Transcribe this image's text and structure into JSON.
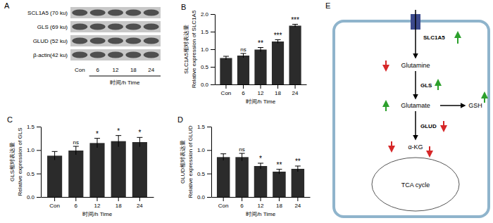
{
  "chart_data": [
    {
      "type": "bar",
      "title": "B",
      "y_label": [
        "SLC1A5相对表达量",
        "Relative expression of SLC1A5"
      ],
      "x_label": "时间/h Time",
      "categories": [
        "Con",
        "6",
        "12",
        "18",
        "24"
      ],
      "values": [
        0.75,
        0.82,
        0.99,
        1.22,
        1.67
      ],
      "errors": [
        0.05,
        0.06,
        0.06,
        0.05,
        0.04
      ],
      "annotations": [
        null,
        "ns",
        "**",
        "***",
        "***"
      ],
      "color": "#2b2b2b",
      "ylim": [
        0,
        2
      ],
      "yticks": [
        {
          "value": 0,
          "label": "0.0"
        },
        0.5,
        {
          "value": 1,
          "label": "1.0"
        },
        1.5,
        {
          "value": 2,
          "label": "2.0"
        }
      ]
    },
    {
      "type": "bar",
      "title": "C",
      "y_label": [
        "GLS相对表达量",
        "Relative expression of GLS"
      ],
      "x_label": "时间/h Time",
      "categories": [
        "Con",
        "6",
        "12",
        "18",
        "24"
      ],
      "values": [
        0.88,
        0.99,
        1.15,
        1.19,
        1.17
      ],
      "errors": [
        0.09,
        0.09,
        0.1,
        0.12,
        0.1
      ],
      "annotations": [
        null,
        "ns",
        "*",
        "*",
        "*"
      ],
      "color": "#2b2b2b",
      "ylim": [
        0,
        1.5
      ],
      "yticks": [
        {
          "value": 0,
          "label": "0.0"
        },
        0.5,
        {
          "value": 1,
          "label": "1.0"
        },
        1.5
      ]
    },
    {
      "type": "bar",
      "title": "D",
      "y_label": [
        "GLUD相对表达量",
        "Relative expression of GLUD"
      ],
      "x_label": "时间/h Time",
      "categories": [
        "Con",
        "6",
        "12",
        "18",
        "24"
      ],
      "values": [
        0.85,
        0.85,
        0.66,
        0.54,
        0.6
      ],
      "errors": [
        0.07,
        0.08,
        0.06,
        0.05,
        0.06
      ],
      "annotations": [
        null,
        "ns",
        "*",
        "**",
        "**"
      ],
      "color": "#2b2b2b",
      "ylim": [
        0,
        1.5
      ],
      "yticks": [
        {
          "value": 0,
          "label": "0.0"
        },
        0.5,
        {
          "value": 1,
          "label": "1.0"
        },
        1.5
      ]
    }
  ],
  "blot": {
    "title": "A",
    "proteins": [
      "SCL1A5 (70 ku)",
      "GLS (69 ku)",
      "GLUD (52 ku)",
      "β-actin(42 ku)"
    ],
    "lanes": [
      "Con",
      "6",
      "12",
      "18",
      "24"
    ],
    "x_label": "时间/h Time"
  },
  "diagram": {
    "title": "E",
    "transporter": "SLC1A5",
    "glutamine": "Glutamine",
    "enzyme1": "GLS",
    "glutamate": "Glutamate",
    "product": "GSH",
    "enzyme2": "GLUD",
    "akg": "α-KG",
    "cycle": "TCA cycle"
  }
}
